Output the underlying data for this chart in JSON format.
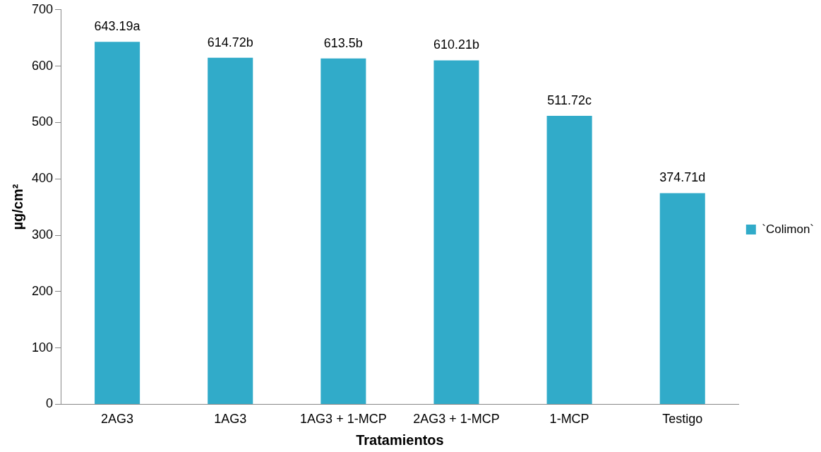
{
  "chart_data": {
    "type": "bar",
    "xlabel": "Tratamientos",
    "ylabel": "µg/cm²",
    "categories": [
      "2AG3",
      "1AG3",
      "1AG3 + 1-MCP",
      "2AG3 + 1-MCP",
      "1-MCP",
      "Testigo"
    ],
    "series": [
      {
        "name": "`Colimon`",
        "color": "#31abc9",
        "values": [
          643.19,
          614.72,
          613.5,
          610.21,
          511.72,
          374.71
        ],
        "value_labels": [
          "643.19a",
          "614.72b",
          "613.5b",
          "610.21b",
          "511.72c",
          "374.71d"
        ]
      }
    ],
    "ylim": [
      0,
      700
    ],
    "yticks": [
      0,
      100,
      200,
      300,
      400,
      500,
      600,
      700
    ],
    "grid": false,
    "legend": "right"
  }
}
